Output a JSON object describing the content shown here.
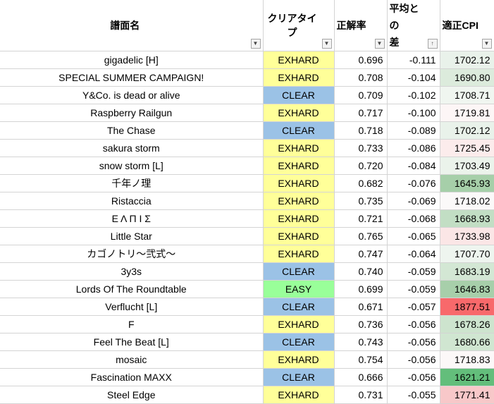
{
  "headers": {
    "name": "譜面名",
    "clear_type": "クリアタイプ",
    "accuracy": "正解率",
    "avg_diff_line1": "平均との",
    "avg_diff_line2": "差",
    "cpi": "適正CPI"
  },
  "clear_colors": {
    "EXHARD": "#ffff99",
    "CLEAR": "#9bc2e6",
    "EASY": "#99ff99"
  },
  "rows": [
    {
      "name": "gigadelic [H]",
      "clear_type": "EXHARD",
      "accuracy": "0.696",
      "avg_diff": "-0.111",
      "cpi": "1702.12",
      "cpi_color": "#e9f2ea"
    },
    {
      "name": "SPECIAL SUMMER CAMPAIGN!",
      "clear_type": "EXHARD",
      "accuracy": "0.708",
      "avg_diff": "-0.104",
      "cpi": "1690.80",
      "cpi_color": "#dcebdc"
    },
    {
      "name": "Y&Co. is dead or alive",
      "clear_type": "CLEAR",
      "accuracy": "0.709",
      "avg_diff": "-0.102",
      "cpi": "1708.71",
      "cpi_color": "#f0f6f0"
    },
    {
      "name": "Raspberry Railgun",
      "clear_type": "EXHARD",
      "accuracy": "0.717",
      "avg_diff": "-0.100",
      "cpi": "1719.81",
      "cpi_color": "#fdf6f6"
    },
    {
      "name": "The Chase",
      "clear_type": "CLEAR",
      "accuracy": "0.718",
      "avg_diff": "-0.089",
      "cpi": "1702.12",
      "cpi_color": "#e9f2ea"
    },
    {
      "name": "sakura storm",
      "clear_type": "EXHARD",
      "accuracy": "0.733",
      "avg_diff": "-0.086",
      "cpi": "1725.45",
      "cpi_color": "#fcecec"
    },
    {
      "name": "snow storm [L]",
      "clear_type": "EXHARD",
      "accuracy": "0.720",
      "avg_diff": "-0.084",
      "cpi": "1703.49",
      "cpi_color": "#ebf3eb"
    },
    {
      "name": "千年ノ理",
      "clear_type": "EXHARD",
      "accuracy": "0.682",
      "avg_diff": "-0.076",
      "cpi": "1645.93",
      "cpi_color": "#a6cfa9"
    },
    {
      "name": "Ristaccia",
      "clear_type": "EXHARD",
      "accuracy": "0.735",
      "avg_diff": "-0.069",
      "cpi": "1718.02",
      "cpi_color": "#fbf9f9"
    },
    {
      "name": "Ε Λ Π Ι Σ",
      "clear_type": "EXHARD",
      "accuracy": "0.721",
      "avg_diff": "-0.068",
      "cpi": "1668.93",
      "cpi_color": "#c2dec4"
    },
    {
      "name": "Little Star",
      "clear_type": "EXHARD",
      "accuracy": "0.765",
      "avg_diff": "-0.065",
      "cpi": "1733.98",
      "cpi_color": "#fbe6e6"
    },
    {
      "name": "カゴノトリ～弐式～",
      "clear_type": "EXHARD",
      "accuracy": "0.747",
      "avg_diff": "-0.064",
      "cpi": "1707.70",
      "cpi_color": "#eef5ef"
    },
    {
      "name": "3y3s",
      "clear_type": "CLEAR",
      "accuracy": "0.740",
      "avg_diff": "-0.059",
      "cpi": "1683.19",
      "cpi_color": "#d3e7d4"
    },
    {
      "name": "Lords Of The Roundtable",
      "clear_type": "EASY",
      "accuracy": "0.699",
      "avg_diff": "-0.059",
      "cpi": "1646.83",
      "cpi_color": "#a7cfaa"
    },
    {
      "name": "Verflucht [L]",
      "clear_type": "CLEAR",
      "accuracy": "0.671",
      "avg_diff": "-0.057",
      "cpi": "1877.51",
      "cpi_color": "#f8696b"
    },
    {
      "name": "F",
      "clear_type": "EXHARD",
      "accuracy": "0.736",
      "avg_diff": "-0.056",
      "cpi": "1678.26",
      "cpi_color": "#cde4ce"
    },
    {
      "name": "Feel The Beat [L]",
      "clear_type": "CLEAR",
      "accuracy": "0.743",
      "avg_diff": "-0.056",
      "cpi": "1680.66",
      "cpi_color": "#d0e6d1"
    },
    {
      "name": "mosaic",
      "clear_type": "EXHARD",
      "accuracy": "0.754",
      "avg_diff": "-0.056",
      "cpi": "1718.83",
      "cpi_color": "#fcf8f8"
    },
    {
      "name": "Fascination MAXX",
      "clear_type": "CLEAR",
      "accuracy": "0.666",
      "avg_diff": "-0.056",
      "cpi": "1621.21",
      "cpi_color": "#63be7b"
    },
    {
      "name": "Steel Edge",
      "clear_type": "EXHARD",
      "accuracy": "0.731",
      "avg_diff": "-0.055",
      "cpi": "1771.41",
      "cpi_color": "#f8c8c9"
    }
  ]
}
